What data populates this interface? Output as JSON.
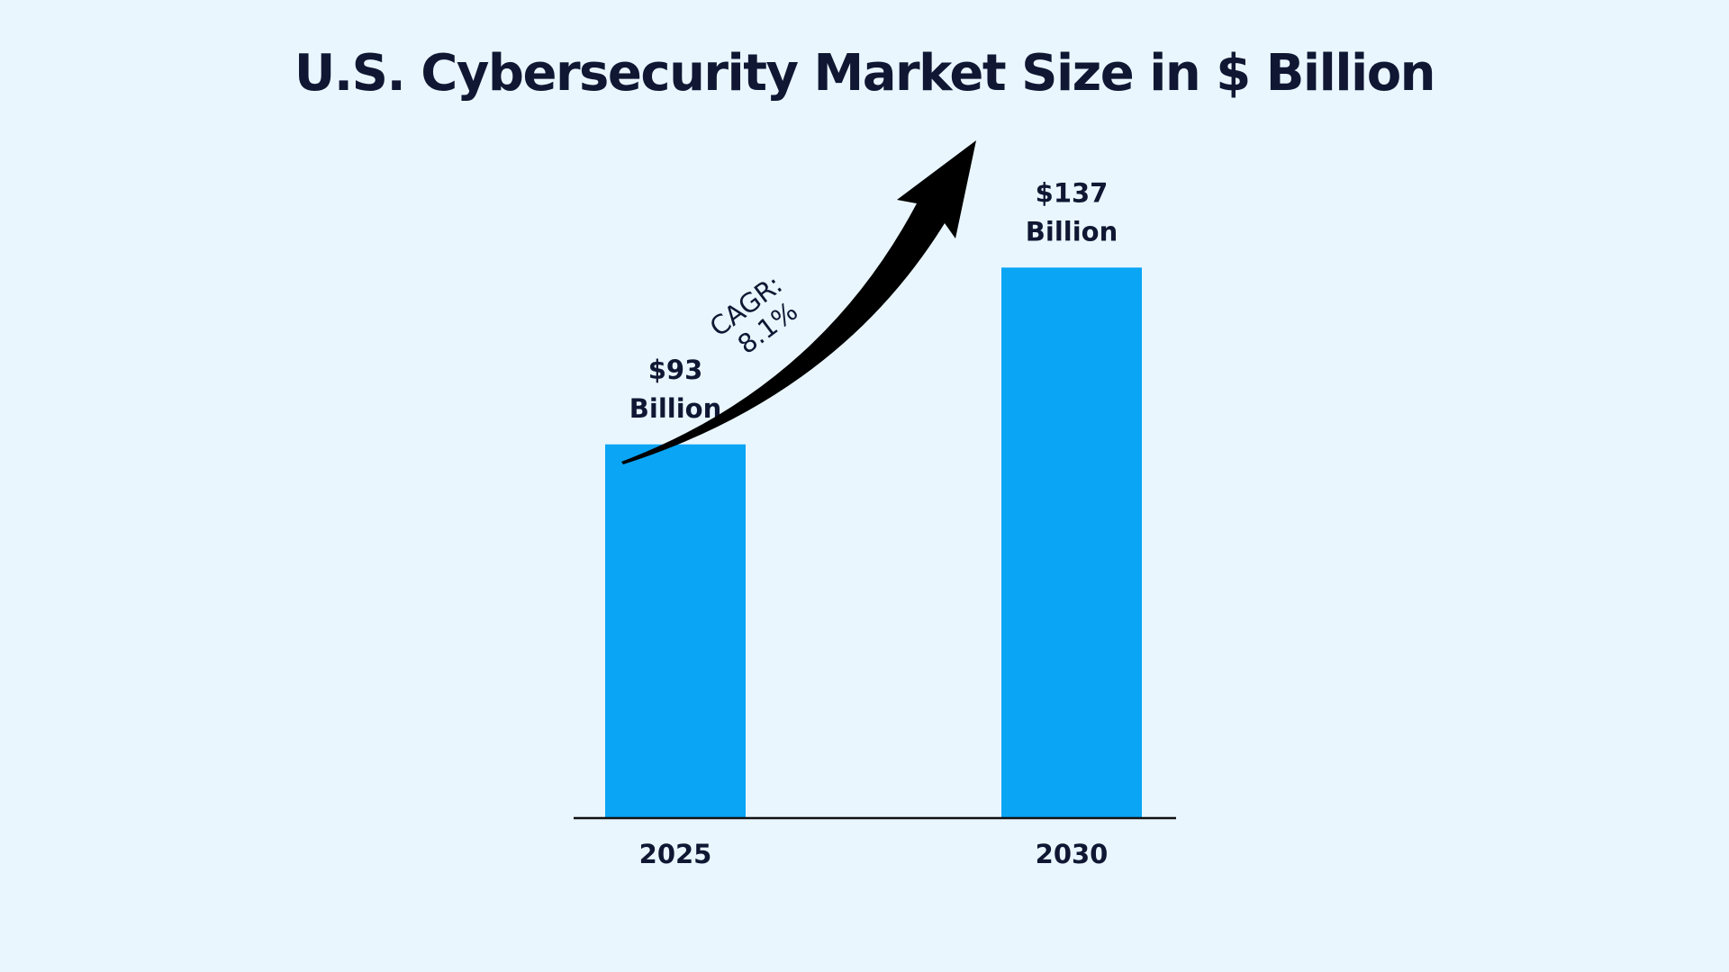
{
  "colors": {
    "background": "#e9f6fe",
    "bar": "#0aa5f5",
    "text": "#0f1733",
    "axis": "#111111",
    "arrow": "#000000"
  },
  "chart_data": {
    "type": "bar",
    "title": "U.S. Cybersecurity Market Size in $ Billion",
    "xlabel": "",
    "ylabel": "",
    "categories": [
      "2025",
      "2030"
    ],
    "values": [
      93,
      137
    ],
    "value_labels": [
      [
        "$93",
        "Billion"
      ],
      [
        "$137",
        "Billion"
      ]
    ],
    "units": "$ Billion",
    "ylim": [
      0,
      160
    ],
    "grid": false,
    "legend": "none",
    "annotation": {
      "type": "growth-arrow",
      "lines": [
        "CAGR:",
        "8.1%"
      ]
    }
  }
}
